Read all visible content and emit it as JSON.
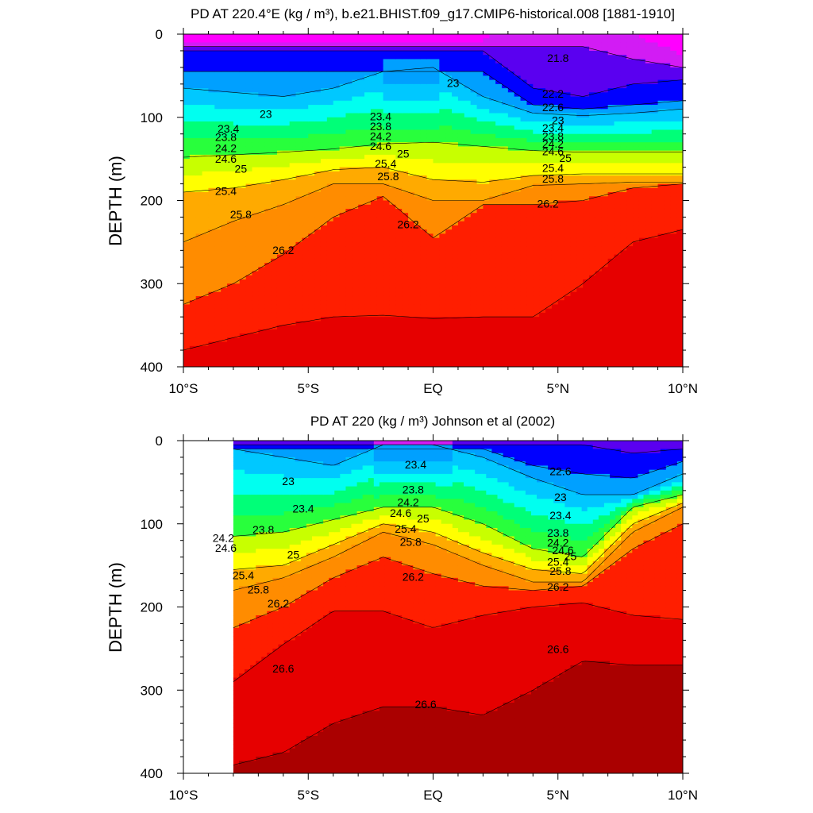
{
  "colors": {
    "levels": [
      21.0,
      21.4,
      21.8,
      22.2,
      22.6,
      23.0,
      23.4,
      23.8,
      24.2,
      24.6,
      25.0,
      25.4,
      25.8,
      26.2,
      26.6,
      27.0
    ],
    "palette": [
      "#7c7c7c",
      "#b4b4b4",
      "#ff00ff",
      "#d21cf4",
      "#9a00e6",
      "#5a00f0",
      "#0000ff",
      "#1450f0",
      "#00a0ff",
      "#00c8ff",
      "#00e6ff",
      "#00fff0",
      "#00ffb4",
      "#00ff78",
      "#28ff3c",
      "#78ff00",
      "#c8ff00",
      "#ffff00",
      "#ffd200",
      "#ffaa00",
      "#ff8c00",
      "#ff5a00",
      "#ff1e00",
      "#e60000",
      "#c80000",
      "#aa0000"
    ]
  },
  "chart_data": [
    {
      "type": "contour",
      "title": "PD AT 220.4°E (kg / m³), b.e21.BHIST.f09_g17.CMIP6-historical.008 [1881-1910]",
      "xlabel": "",
      "ylabel": "DEPTH (m)",
      "xlim": [
        -10,
        10
      ],
      "ylim": [
        400,
        0
      ],
      "x_ticks": [
        -10,
        -5,
        0,
        5,
        10
      ],
      "x_tick_labels": [
        "10°S",
        "5°S",
        "EQ",
        "5°N",
        "10°N"
      ],
      "y_ticks": [
        0,
        100,
        200,
        300,
        400
      ],
      "y_tick_labels": [
        "0",
        "100",
        "200",
        "300",
        "400"
      ],
      "x_start": -10,
      "contour_levels": [
        22.2,
        22.6,
        23.0,
        23.4,
        23.8,
        24.2,
        24.6,
        25.0,
        25.4,
        25.8,
        26.2,
        26.6
      ],
      "isopycnal_depths": {
        "x": [
          -10,
          -8,
          -6,
          -4,
          -2,
          0,
          2,
          4,
          6,
          8,
          10
        ],
        "sigma_21_8": [
          null,
          null,
          null,
          null,
          null,
          null,
          null,
          null,
          15,
          30,
          40
        ],
        "sigma_22_2": [
          null,
          null,
          null,
          null,
          null,
          null,
          20,
          65,
          75,
          60,
          55
        ],
        "sigma_22_6": [
          null,
          null,
          null,
          null,
          null,
          null,
          45,
          85,
          90,
          85,
          80
        ],
        "sigma_23_0": [
          65,
          70,
          75,
          65,
          45,
          40,
          75,
          95,
          98,
          95,
          90
        ],
        "sigma_24_6": [
          148,
          145,
          142,
          138,
          132,
          130,
          135,
          140,
          142,
          142,
          142
        ],
        "sigma_25_4": [
          190,
          185,
          175,
          163,
          160,
          175,
          178,
          170,
          168,
          168,
          168
        ],
        "sigma_25_8": [
          250,
          225,
          205,
          180,
          180,
          200,
          200,
          182,
          180,
          178,
          178
        ],
        "sigma_26_2": [
          325,
          300,
          265,
          220,
          195,
          245,
          205,
          205,
          200,
          185,
          180
        ],
        "sigma_26_6": [
          380,
          365,
          350,
          340,
          338,
          342,
          340,
          340,
          300,
          250,
          235
        ]
      },
      "contour_labels": [
        {
          "text": "21.8",
          "x": 5.0,
          "y": 30
        },
        {
          "text": "23",
          "x": 0.8,
          "y": 60
        },
        {
          "text": "23",
          "x": -6.7,
          "y": 97
        },
        {
          "text": "23",
          "x": 5.0,
          "y": 105
        },
        {
          "text": "22.2",
          "x": 4.8,
          "y": 73
        },
        {
          "text": "22.6",
          "x": 4.8,
          "y": 89
        },
        {
          "text": "23.4",
          "x": -8.2,
          "y": 115
        },
        {
          "text": "23.8",
          "x": -8.3,
          "y": 125
        },
        {
          "text": "24.2",
          "x": -8.3,
          "y": 138
        },
        {
          "text": "24.6",
          "x": -8.3,
          "y": 151
        },
        {
          "text": "25",
          "x": -7.7,
          "y": 163
        },
        {
          "text": "25.4",
          "x": -8.3,
          "y": 190
        },
        {
          "text": "25.8",
          "x": -7.7,
          "y": 218
        },
        {
          "text": "26.2",
          "x": -6.0,
          "y": 261
        },
        {
          "text": "23.4",
          "x": -2.1,
          "y": 100
        },
        {
          "text": "23.8",
          "x": -2.1,
          "y": 112
        },
        {
          "text": "24.2",
          "x": -2.1,
          "y": 124
        },
        {
          "text": "24.6",
          "x": -2.1,
          "y": 136
        },
        {
          "text": "25",
          "x": -1.2,
          "y": 145
        },
        {
          "text": "25.4",
          "x": -1.9,
          "y": 157
        },
        {
          "text": "25.8",
          "x": -1.8,
          "y": 172
        },
        {
          "text": "26.2",
          "x": -1.0,
          "y": 230
        },
        {
          "text": "23.4",
          "x": 4.8,
          "y": 114
        },
        {
          "text": "23.8",
          "x": 4.8,
          "y": 124
        },
        {
          "text": "24.2",
          "x": 4.8,
          "y": 133
        },
        {
          "text": "24.6",
          "x": 4.8,
          "y": 142
        },
        {
          "text": "25",
          "x": 5.3,
          "y": 150
        },
        {
          "text": "25.4",
          "x": 4.8,
          "y": 162
        },
        {
          "text": "25.8",
          "x": 4.8,
          "y": 175
        },
        {
          "text": "26.2",
          "x": 4.6,
          "y": 205
        }
      ]
    },
    {
      "type": "contour",
      "title": "PD AT 220 (kg / m³) Johnson et al (2002)",
      "xlabel": "",
      "ylabel": "DEPTH (m)",
      "xlim": [
        -10,
        10
      ],
      "ylim": [
        400,
        0
      ],
      "x_ticks": [
        -10,
        -5,
        0,
        5,
        10
      ],
      "x_tick_labels": [
        "10°S",
        "5°S",
        "EQ",
        "5°N",
        "10°N"
      ],
      "y_ticks": [
        0,
        100,
        200,
        300,
        400
      ],
      "y_tick_labels": [
        "0",
        "100",
        "200",
        "300",
        "400"
      ],
      "x_start": -8,
      "contour_levels": [
        22.2,
        22.6,
        23.0,
        23.4,
        23.8,
        24.2,
        24.6,
        25.0,
        25.4,
        25.8,
        26.2,
        26.6,
        27.0
      ],
      "isopycnal_depths": {
        "x": [
          -8,
          -6,
          -4,
          -2,
          0,
          2,
          4,
          6,
          8,
          10
        ],
        "sigma_22_2": [
          null,
          null,
          null,
          null,
          null,
          null,
          null,
          5,
          15,
          10
        ],
        "sigma_22_6": [
          null,
          null,
          null,
          null,
          null,
          10,
          30,
          40,
          45,
          25
        ],
        "sigma_23_0": [
          10,
          20,
          30,
          5,
          5,
          20,
          45,
          65,
          65,
          40
        ],
        "sigma_24_6": [
          115,
          110,
          95,
          80,
          80,
          100,
          130,
          140,
          80,
          65
        ],
        "sigma_25_4": [
          155,
          150,
          125,
          100,
          110,
          135,
          155,
          160,
          100,
          75
        ],
        "sigma_25_8": [
          180,
          165,
          140,
          110,
          125,
          150,
          170,
          170,
          110,
          80
        ],
        "sigma_26_2": [
          225,
          200,
          165,
          140,
          160,
          175,
          180,
          175,
          130,
          100
        ],
        "sigma_26_6": [
          290,
          245,
          205,
          205,
          225,
          210,
          200,
          195,
          210,
          215
        ],
        "sigma_27_0": [
          390,
          375,
          340,
          320,
          320,
          330,
          300,
          265,
          270,
          270
        ]
      },
      "contour_labels": [
        {
          "text": "23",
          "x": -5.8,
          "y": 50
        },
        {
          "text": "23.4",
          "x": -5.2,
          "y": 83
        },
        {
          "text": "23.8",
          "x": -6.8,
          "y": 108
        },
        {
          "text": "24.2",
          "x": -8.4,
          "y": 118
        },
        {
          "text": "24.6",
          "x": -8.3,
          "y": 130
        },
        {
          "text": "25",
          "x": -5.6,
          "y": 138
        },
        {
          "text": "25.4",
          "x": -7.6,
          "y": 163
        },
        {
          "text": "25.8",
          "x": -7.0,
          "y": 180
        },
        {
          "text": "26.2",
          "x": -6.2,
          "y": 197
        },
        {
          "text": "26.6",
          "x": -6.0,
          "y": 275
        },
        {
          "text": "23.4",
          "x": -0.7,
          "y": 30
        },
        {
          "text": "23.8",
          "x": -0.8,
          "y": 60
        },
        {
          "text": "24.2",
          "x": -1.0,
          "y": 75
        },
        {
          "text": "24.6",
          "x": -1.3,
          "y": 88
        },
        {
          "text": "25",
          "x": -0.4,
          "y": 95
        },
        {
          "text": "25.4",
          "x": -1.1,
          "y": 107
        },
        {
          "text": "25.8",
          "x": -0.9,
          "y": 123
        },
        {
          "text": "26.2",
          "x": -0.8,
          "y": 165
        },
        {
          "text": "26.6",
          "x": -0.3,
          "y": 318
        },
        {
          "text": "22.6",
          "x": 5.1,
          "y": 38
        },
        {
          "text": "23",
          "x": 5.1,
          "y": 69
        },
        {
          "text": "23.4",
          "x": 5.1,
          "y": 91
        },
        {
          "text": "23.8",
          "x": 5.0,
          "y": 112
        },
        {
          "text": "24.2",
          "x": 5.0,
          "y": 124
        },
        {
          "text": "24.6",
          "x": 5.2,
          "y": 133
        },
        {
          "text": "25",
          "x": 5.5,
          "y": 140
        },
        {
          "text": "25.4",
          "x": 5.0,
          "y": 147
        },
        {
          "text": "25.8",
          "x": 5.1,
          "y": 158
        },
        {
          "text": "26.2",
          "x": 5.0,
          "y": 177
        },
        {
          "text": "26.6",
          "x": 5.0,
          "y": 252
        }
      ]
    }
  ]
}
